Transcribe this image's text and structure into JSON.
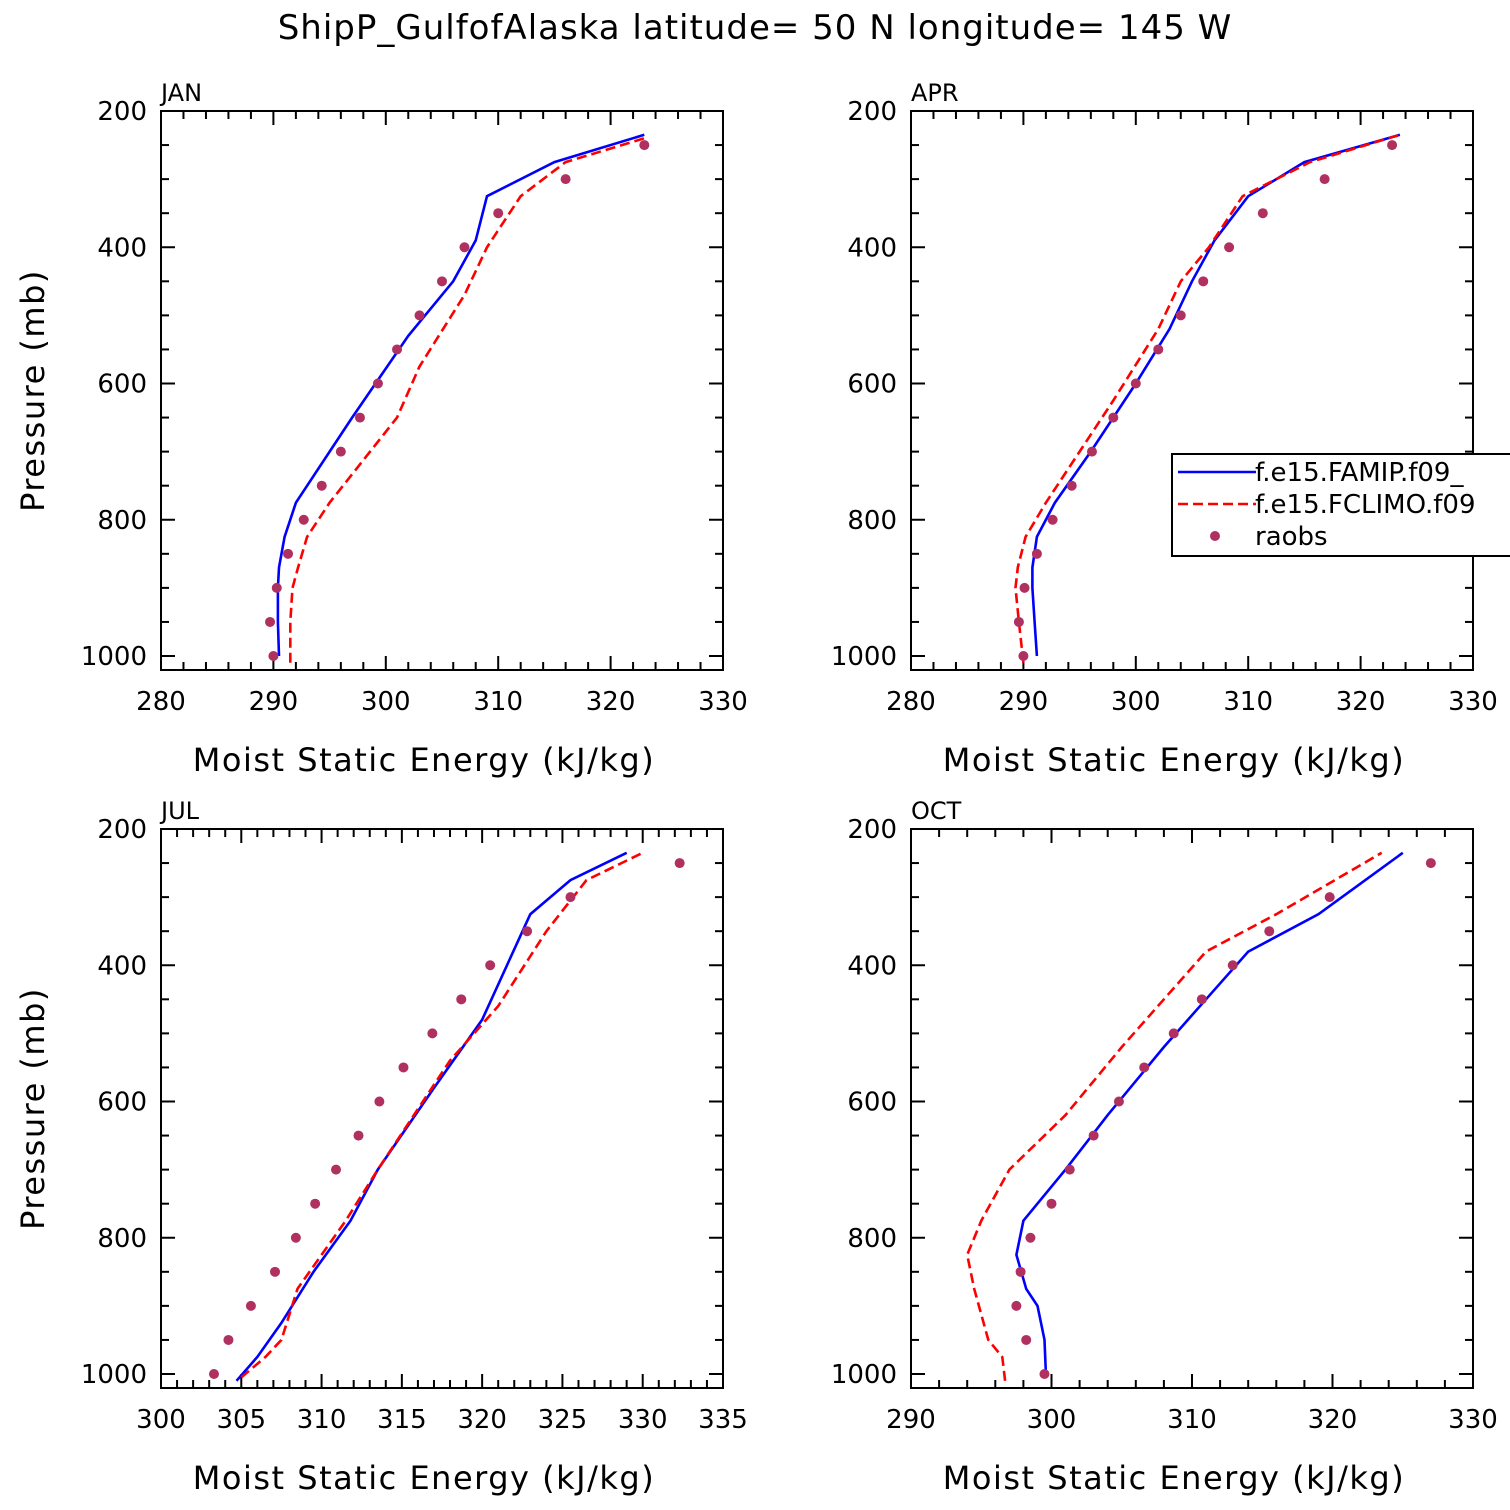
{
  "title": "ShipP_GulfofAlaska  latitude= 50 N longitude= 145 W",
  "colors": {
    "famip": "#0000ff",
    "fclimo": "#ff0000",
    "raobs": "#b03060",
    "axis": "#000000"
  },
  "legend": {
    "entries": [
      {
        "label": "f.e15.FAMIP.f09_",
        "style": "solid",
        "color": "#0000ff"
      },
      {
        "label": "f.e15.FCLIMO.f09",
        "style": "dashed",
        "color": "#ff0000"
      },
      {
        "label": "raobs",
        "style": "dot",
        "color": "#b03060"
      }
    ],
    "placement": "right-middle of APR panel"
  },
  "chart_data": [
    {
      "type": "line",
      "panel_label": "JAN",
      "xlabel": "Moist Static Energy (kJ/kg)",
      "ylabel": "Pressure (mb)",
      "xlim": [
        280,
        330
      ],
      "ylim": [
        1020,
        200
      ],
      "xticks": [
        280,
        290,
        300,
        310,
        320,
        330
      ],
      "yticks": [
        200,
        400,
        600,
        800,
        1000
      ],
      "series": [
        {
          "name": "f.e15.FAMIP.f09_",
          "style": "solid",
          "color": "#0000ff",
          "points": [
            [
              290.5,
              1000
            ],
            [
              290.4,
              950
            ],
            [
              290.4,
              900
            ],
            [
              290.5,
              870
            ],
            [
              291,
              825
            ],
            [
              292,
              775
            ],
            [
              297,
              650
            ],
            [
              302,
              530
            ],
            [
              306,
              450
            ],
            [
              308,
              390
            ],
            [
              309,
              325
            ],
            [
              315,
              275
            ],
            [
              323,
              235
            ]
          ]
        },
        {
          "name": "f.e15.FCLIMO.f09",
          "style": "dashed",
          "color": "#ff0000",
          "points": [
            [
              291.5,
              1010
            ],
            [
              291.5,
              950
            ],
            [
              291.7,
              900
            ],
            [
              292.2,
              870
            ],
            [
              293,
              825
            ],
            [
              295,
              775
            ],
            [
              301,
              650
            ],
            [
              303,
              575
            ],
            [
              307,
              470
            ],
            [
              309,
              400
            ],
            [
              310,
              375
            ],
            [
              312,
              325
            ],
            [
              316,
              275
            ],
            [
              323,
              240
            ]
          ]
        },
        {
          "name": "raobs",
          "style": "dot",
          "color": "#b03060",
          "points": [
            [
              290,
              1000
            ],
            [
              289.7,
              950
            ],
            [
              290.3,
              900
            ],
            [
              291.3,
              850
            ],
            [
              292.7,
              800
            ],
            [
              294.3,
              750
            ],
            [
              296,
              700
            ],
            [
              297.7,
              650
            ],
            [
              299.3,
              600
            ],
            [
              301,
              550
            ],
            [
              303,
              500
            ],
            [
              305,
              450
            ],
            [
              307,
              400
            ],
            [
              310,
              350
            ],
            [
              316,
              300
            ],
            [
              323,
              250
            ]
          ]
        }
      ]
    },
    {
      "type": "line",
      "panel_label": "APR",
      "xlabel": "Moist Static Energy (kJ/kg)",
      "ylabel": "",
      "xlim": [
        280,
        330
      ],
      "ylim": [
        1020,
        200
      ],
      "xticks": [
        280,
        290,
        300,
        310,
        320,
        330
      ],
      "yticks": [
        200,
        400,
        600,
        800,
        1000
      ],
      "series": [
        {
          "name": "f.e15.FAMIP.f09_",
          "style": "solid",
          "color": "#0000ff",
          "points": [
            [
              291.2,
              1000
            ],
            [
              291,
              950
            ],
            [
              290.8,
              900
            ],
            [
              290.8,
              870
            ],
            [
              291.2,
              825
            ],
            [
              292.8,
              775
            ],
            [
              296,
              700
            ],
            [
              300,
              600
            ],
            [
              303,
              520
            ],
            [
              305,
              450
            ],
            [
              307,
              390
            ],
            [
              310,
              325
            ],
            [
              315,
              275
            ],
            [
              323.5,
              235
            ]
          ]
        },
        {
          "name": "f.e15.FCLIMO.f09",
          "style": "dashed",
          "color": "#ff0000",
          "points": [
            [
              290,
              1010
            ],
            [
              289.6,
              950
            ],
            [
              289.3,
              900
            ],
            [
              289.5,
              870
            ],
            [
              290.2,
              825
            ],
            [
              292,
              775
            ],
            [
              295,
              700
            ],
            [
              298,
              625
            ],
            [
              302,
              520
            ],
            [
              304,
              450
            ],
            [
              306.5,
              400
            ],
            [
              309.5,
              325
            ],
            [
              315.5,
              275
            ],
            [
              323.5,
              235
            ]
          ]
        },
        {
          "name": "raobs",
          "style": "dot",
          "color": "#b03060",
          "points": [
            [
              290,
              1000
            ],
            [
              289.6,
              950
            ],
            [
              290.1,
              900
            ],
            [
              291.2,
              850
            ],
            [
              292.6,
              800
            ],
            [
              294.3,
              750
            ],
            [
              296.1,
              700
            ],
            [
              298,
              650
            ],
            [
              300,
              600
            ],
            [
              302,
              550
            ],
            [
              304,
              500
            ],
            [
              306,
              450
            ],
            [
              308.3,
              400
            ],
            [
              311.3,
              350
            ],
            [
              316.8,
              300
            ],
            [
              322.8,
              250
            ]
          ]
        }
      ]
    },
    {
      "type": "line",
      "panel_label": "JUL",
      "xlabel": "Moist Static Energy (kJ/kg)",
      "ylabel": "Pressure (mb)",
      "xlim": [
        300,
        335
      ],
      "ylim": [
        1020,
        200
      ],
      "xticks": [
        300,
        305,
        310,
        315,
        320,
        325,
        330,
        335
      ],
      "yticks": [
        200,
        400,
        600,
        800,
        1000
      ],
      "series": [
        {
          "name": "f.e15.FAMIP.f09_",
          "style": "solid",
          "color": "#0000ff",
          "points": [
            [
              304.7,
              1010
            ],
            [
              306,
              975
            ],
            [
              307.5,
              925
            ],
            [
              309.5,
              850
            ],
            [
              311.8,
              775
            ],
            [
              313.5,
              700
            ],
            [
              317,
              580
            ],
            [
              320,
              480
            ],
            [
              323,
              325
            ],
            [
              325.5,
              275
            ],
            [
              329,
              235
            ]
          ]
        },
        {
          "name": "f.e15.FCLIMO.f09",
          "style": "dashed",
          "color": "#ff0000",
          "points": [
            [
              305,
              1005
            ],
            [
              306.5,
              975
            ],
            [
              307.5,
              950
            ],
            [
              308.5,
              875
            ],
            [
              311.5,
              775
            ],
            [
              313.5,
              700
            ],
            [
              318,
              540
            ],
            [
              321,
              460
            ],
            [
              324,
              350
            ],
            [
              326.5,
              275
            ],
            [
              330,
              235
            ]
          ]
        },
        {
          "name": "raobs",
          "style": "dot",
          "color": "#b03060",
          "points": [
            [
              303.3,
              1000
            ],
            [
              304.2,
              950
            ],
            [
              305.6,
              900
            ],
            [
              307.1,
              850
            ],
            [
              308.4,
              800
            ],
            [
              309.6,
              750
            ],
            [
              310.9,
              700
            ],
            [
              312.3,
              650
            ],
            [
              313.6,
              600
            ],
            [
              315.1,
              550
            ],
            [
              316.9,
              500
            ],
            [
              318.7,
              450
            ],
            [
              320.5,
              400
            ],
            [
              322.8,
              350
            ],
            [
              325.5,
              300
            ],
            [
              332.3,
              250
            ]
          ]
        }
      ]
    },
    {
      "type": "line",
      "panel_label": "OCT",
      "xlabel": "Moist Static Energy (kJ/kg)",
      "ylabel": "",
      "xlim": [
        290,
        330
      ],
      "ylim": [
        1020,
        200
      ],
      "xticks": [
        290,
        300,
        310,
        320,
        330
      ],
      "yticks": [
        200,
        400,
        600,
        800,
        1000
      ],
      "series": [
        {
          "name": "f.e15.FAMIP.f09_",
          "style": "solid",
          "color": "#0000ff",
          "points": [
            [
              299.6,
              1000
            ],
            [
              299.5,
              950
            ],
            [
              299,
              900
            ],
            [
              298.2,
              875
            ],
            [
              297.5,
              825
            ],
            [
              298,
              775
            ],
            [
              301,
              700
            ],
            [
              304,
              620
            ],
            [
              308,
              520
            ],
            [
              311,
              450
            ],
            [
              314,
              380
            ],
            [
              319,
              325
            ],
            [
              325,
              235
            ]
          ]
        },
        {
          "name": "f.e15.FCLIMO.f09",
          "style": "dashed",
          "color": "#ff0000",
          "points": [
            [
              296.7,
              1010
            ],
            [
              296.5,
              975
            ],
            [
              295.5,
              950
            ],
            [
              294.5,
              875
            ],
            [
              294,
              825
            ],
            [
              295,
              775
            ],
            [
              297,
              700
            ],
            [
              301,
              620
            ],
            [
              305,
              520
            ],
            [
              308,
              450
            ],
            [
              311,
              380
            ],
            [
              316,
              325
            ],
            [
              323.5,
              235
            ]
          ]
        },
        {
          "name": "raobs",
          "style": "dot",
          "color": "#b03060",
          "points": [
            [
              299.5,
              1000
            ],
            [
              298.2,
              950
            ],
            [
              297.5,
              900
            ],
            [
              297.8,
              850
            ],
            [
              298.5,
              800
            ],
            [
              300,
              750
            ],
            [
              301.3,
              700
            ],
            [
              303,
              650
            ],
            [
              304.8,
              600
            ],
            [
              306.6,
              550
            ],
            [
              308.7,
              500
            ],
            [
              310.7,
              450
            ],
            [
              312.9,
              400
            ],
            [
              315.5,
              350
            ],
            [
              319.8,
              300
            ],
            [
              327,
              250
            ]
          ]
        }
      ]
    }
  ]
}
